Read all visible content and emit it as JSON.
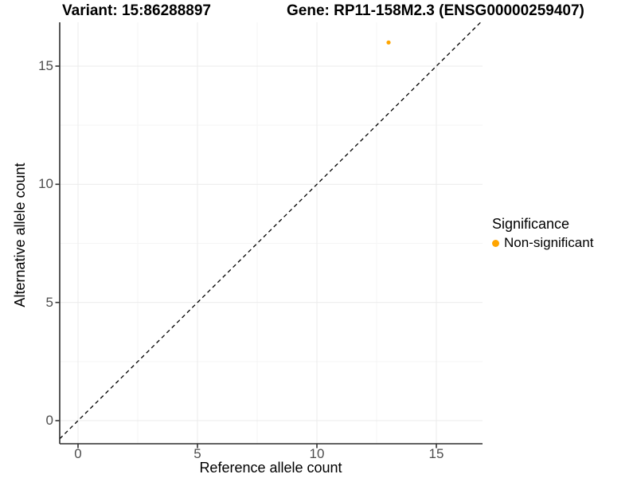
{
  "titles": {
    "variant": "Variant: 15:86288897",
    "gene": "Gene: RP11-158M2.3 (ENSG00000259407)"
  },
  "axes": {
    "x": {
      "label": "Reference allele count",
      "ticks": [
        0,
        5,
        10,
        15
      ],
      "minor_ticks": [
        2.5,
        7.5,
        12.5
      ]
    },
    "y": {
      "label": "Alternative allele count",
      "ticks": [
        0,
        5,
        10,
        15
      ],
      "minor_ticks": [
        2.5,
        7.5,
        12.5
      ]
    }
  },
  "legend": {
    "title": "Significance",
    "items": [
      {
        "label": "Non-significant",
        "color": "#FFA500"
      }
    ]
  },
  "colors": {
    "point_orange": "#FFA500",
    "axis_line": "#2e2e2e",
    "tick_mark": "#333333",
    "tick_label": "#4d4d4d",
    "grid_major": "#ebebeb",
    "grid_minor": "#f5f5f5",
    "identity_line": "#000000",
    "background": "#ffffff"
  },
  "chart_data": {
    "type": "scatter",
    "title_left": "Variant: 15:86288897",
    "title_right": "Gene: RP11-158M2.3 (ENSG00000259407)",
    "xlabel": "Reference allele count",
    "ylabel": "Alternative allele count",
    "xlim": [
      -0.8,
      16.9
    ],
    "ylim": [
      -1.0,
      16.85
    ],
    "x_ticks": [
      0,
      5,
      10,
      15
    ],
    "y_ticks": [
      0,
      5,
      10,
      15
    ],
    "grid": "major+minor, faint gray, white background",
    "legend_position": "right",
    "identity_line": {
      "type": "abline",
      "slope": 1,
      "intercept": 0,
      "style": "dashed",
      "color": "#000000"
    },
    "series": [
      {
        "name": "Non-significant",
        "color": "#FFA500",
        "points": [
          {
            "x": 13,
            "y": 16
          }
        ]
      }
    ]
  }
}
